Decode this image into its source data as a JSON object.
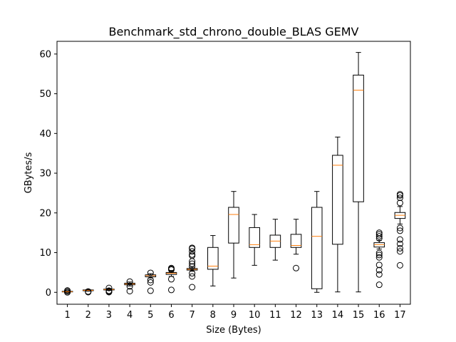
{
  "chart_data": {
    "type": "box",
    "title": "Benchmark_std_chrono_double_BLAS GEMV",
    "xlabel": "Size (Bytes)",
    "ylabel": "GBytes/s",
    "xlim": [
      0.5,
      17.5
    ],
    "ylim": [
      -3,
      63.2
    ],
    "y_ticks": [
      0,
      10,
      20,
      30,
      40,
      50,
      60
    ],
    "categories": [
      "1",
      "2",
      "3",
      "4",
      "5",
      "6",
      "7",
      "8",
      "9",
      "10",
      "11",
      "12",
      "13",
      "14",
      "15",
      "16",
      "17"
    ],
    "grid": false,
    "colors": {
      "box": "#000000",
      "median": "#ff7f0e",
      "background": "#ffffff"
    },
    "boxes": [
      {
        "label": "1",
        "whisker_low": 0.0,
        "q1": 0.1,
        "median": 0.15,
        "q3": 0.25,
        "whisker_high": 0.4,
        "outliers": [
          0.0,
          0.05,
          0.35,
          0.45
        ]
      },
      {
        "label": "2",
        "whisker_low": 0.3,
        "q1": 0.4,
        "median": 0.5,
        "q3": 0.6,
        "whisker_high": 0.7,
        "outliers": [
          0.05,
          0.2
        ]
      },
      {
        "label": "3",
        "whisker_low": 0.5,
        "q1": 0.6,
        "median": 0.7,
        "q3": 0.8,
        "whisker_high": 0.95,
        "outliers": [
          0.05,
          0.2,
          0.4,
          1.1
        ]
      },
      {
        "label": "4",
        "whisker_low": 1.6,
        "q1": 1.9,
        "median": 2.1,
        "q3": 2.3,
        "whisker_high": 2.6,
        "outliers": [
          0.3,
          1.5,
          2.7
        ]
      },
      {
        "label": "5",
        "whisker_low": 3.6,
        "q1": 3.9,
        "median": 4.2,
        "q3": 4.4,
        "whisker_high": 4.7,
        "outliers": [
          0.4,
          2.5,
          3.1,
          4.9
        ]
      },
      {
        "label": "6",
        "whisker_low": 4.0,
        "q1": 4.5,
        "median": 4.8,
        "q3": 5.0,
        "whisker_high": 5.5,
        "outliers": [
          0.6,
          3.3,
          5.7,
          5.9,
          6.1
        ]
      },
      {
        "label": "7",
        "whisker_low": 5.3,
        "q1": 5.6,
        "median": 5.8,
        "q3": 6.0,
        "whisker_high": 6.3,
        "outliers": [
          1.3,
          4.0,
          4.8,
          6.5,
          7.2,
          7.8,
          9.2,
          9.5,
          10.3,
          11.0,
          11.2
        ]
      },
      {
        "label": "8",
        "whisker_low": 1.6,
        "q1": 5.8,
        "median": 6.6,
        "q3": 11.3,
        "whisker_high": 14.3,
        "outliers": []
      },
      {
        "label": "9",
        "whisker_low": 3.6,
        "q1": 12.4,
        "median": 19.6,
        "q3": 21.4,
        "whisker_high": 25.4,
        "outliers": []
      },
      {
        "label": "10",
        "whisker_low": 6.8,
        "q1": 11.3,
        "median": 12.0,
        "q3": 16.3,
        "whisker_high": 19.6,
        "outliers": []
      },
      {
        "label": "11",
        "whisker_low": 8.1,
        "q1": 11.3,
        "median": 12.9,
        "q3": 14.4,
        "whisker_high": 18.4,
        "outliers": []
      },
      {
        "label": "12",
        "whisker_low": 9.6,
        "q1": 11.3,
        "median": 11.8,
        "q3": 14.6,
        "whisker_high": 18.4,
        "outliers": [
          6.1
        ]
      },
      {
        "label": "13",
        "whisker_low": 0.0,
        "q1": 0.9,
        "median": 14.1,
        "q3": 21.4,
        "whisker_high": 25.4,
        "outliers": []
      },
      {
        "label": "14",
        "whisker_low": 0.1,
        "q1": 12.1,
        "median": 32.0,
        "q3": 34.5,
        "whisker_high": 39.1,
        "outliers": []
      },
      {
        "label": "15",
        "whisker_low": 0.1,
        "q1": 22.8,
        "median": 50.9,
        "q3": 54.7,
        "whisker_high": 60.4,
        "outliers": []
      },
      {
        "label": "16",
        "whisker_low": 10.9,
        "q1": 11.4,
        "median": 12.0,
        "q3": 12.5,
        "whisker_high": 13.1,
        "outliers": [
          1.9,
          4.5,
          5.6,
          6.9,
          8.8,
          9.4,
          9.9,
          13.6,
          14.1,
          14.6,
          15.0
        ]
      },
      {
        "label": "17",
        "whisker_low": 17.2,
        "q1": 18.6,
        "median": 19.4,
        "q3": 20.1,
        "whisker_high": 21.6,
        "outliers": [
          6.8,
          10.3,
          11.1,
          12.2,
          13.3,
          15.5,
          16.2,
          22.5,
          23.8,
          24.4,
          24.7
        ]
      }
    ]
  }
}
